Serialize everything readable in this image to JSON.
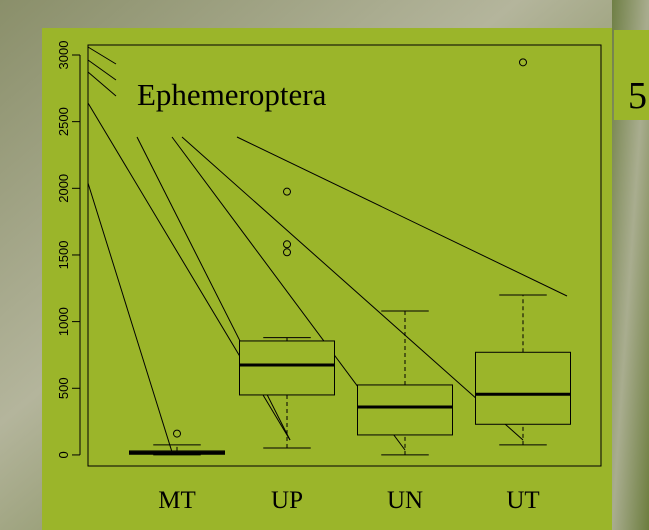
{
  "chart_data": {
    "type": "box",
    "annotation": "Ephemeroptera",
    "categories": [
      "MT",
      "UP",
      "UN",
      "UT"
    ],
    "boxes": [
      {
        "low": 0,
        "q1": 5,
        "median": 15,
        "q3": 30,
        "high": 75,
        "outliers": [
          160
        ]
      },
      {
        "low": 52,
        "q1": 450,
        "median": 675,
        "q3": 855,
        "high": 880,
        "outliers": [
          1975,
          1580,
          1520
        ]
      },
      {
        "low": 0,
        "q1": 150,
        "median": 360,
        "q3": 525,
        "high": 1080,
        "outliers": []
      },
      {
        "low": 75,
        "q1": 230,
        "median": 455,
        "q3": 770,
        "high": 1200,
        "outliers": [
          2945
        ]
      }
    ],
    "color": "#9bb52a",
    "ylim": [
      -83,
      3075
    ],
    "yticks": [
      0,
      500,
      1000,
      1500,
      2000,
      2500,
      3000
    ]
  },
  "side_label": "5"
}
